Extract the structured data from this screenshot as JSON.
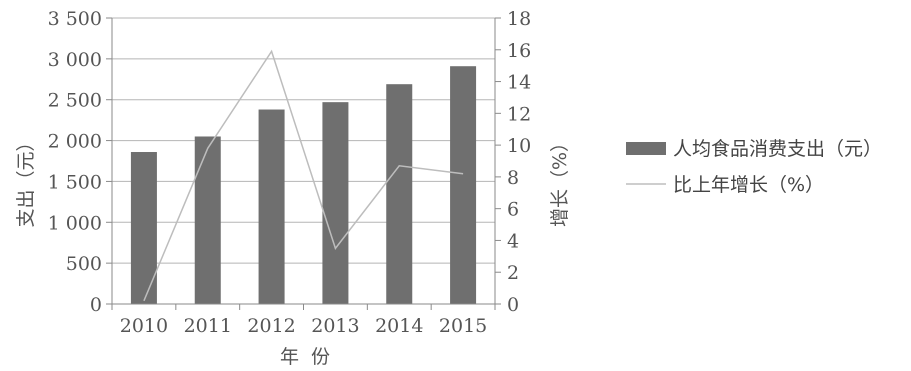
{
  "chart_data": {
    "type": "bar+line",
    "categories": [
      "2010",
      "2011",
      "2012",
      "2013",
      "2014",
      "2015"
    ],
    "series": [
      {
        "name": "人均食品消费支出（元）",
        "type": "bar",
        "axis": "left",
        "values": [
          1860,
          2050,
          2380,
          2470,
          2690,
          2910
        ],
        "color": "#6f6f6f"
      },
      {
        "name": "比上年增长（%）",
        "type": "line",
        "axis": "right",
        "values": [
          0.2,
          9.8,
          15.9,
          3.5,
          8.7,
          8.2
        ],
        "color": "#bdbdbd"
      }
    ],
    "xlabel": "年  份",
    "ylabel_left": "支出（元）",
    "ylabel_right": "增长（%）",
    "ylim_left": [
      0,
      3500
    ],
    "ylim_right": [
      0,
      18
    ],
    "yticks_left": [
      "0",
      "500",
      "1 000",
      "1 500",
      "2 000",
      "2 500",
      "3 000",
      "3 500"
    ],
    "yticks_right": [
      "0",
      "2",
      "4",
      "6",
      "8",
      "10",
      "12",
      "14",
      "16",
      "18"
    ],
    "grid": true,
    "legend_position": "right"
  }
}
